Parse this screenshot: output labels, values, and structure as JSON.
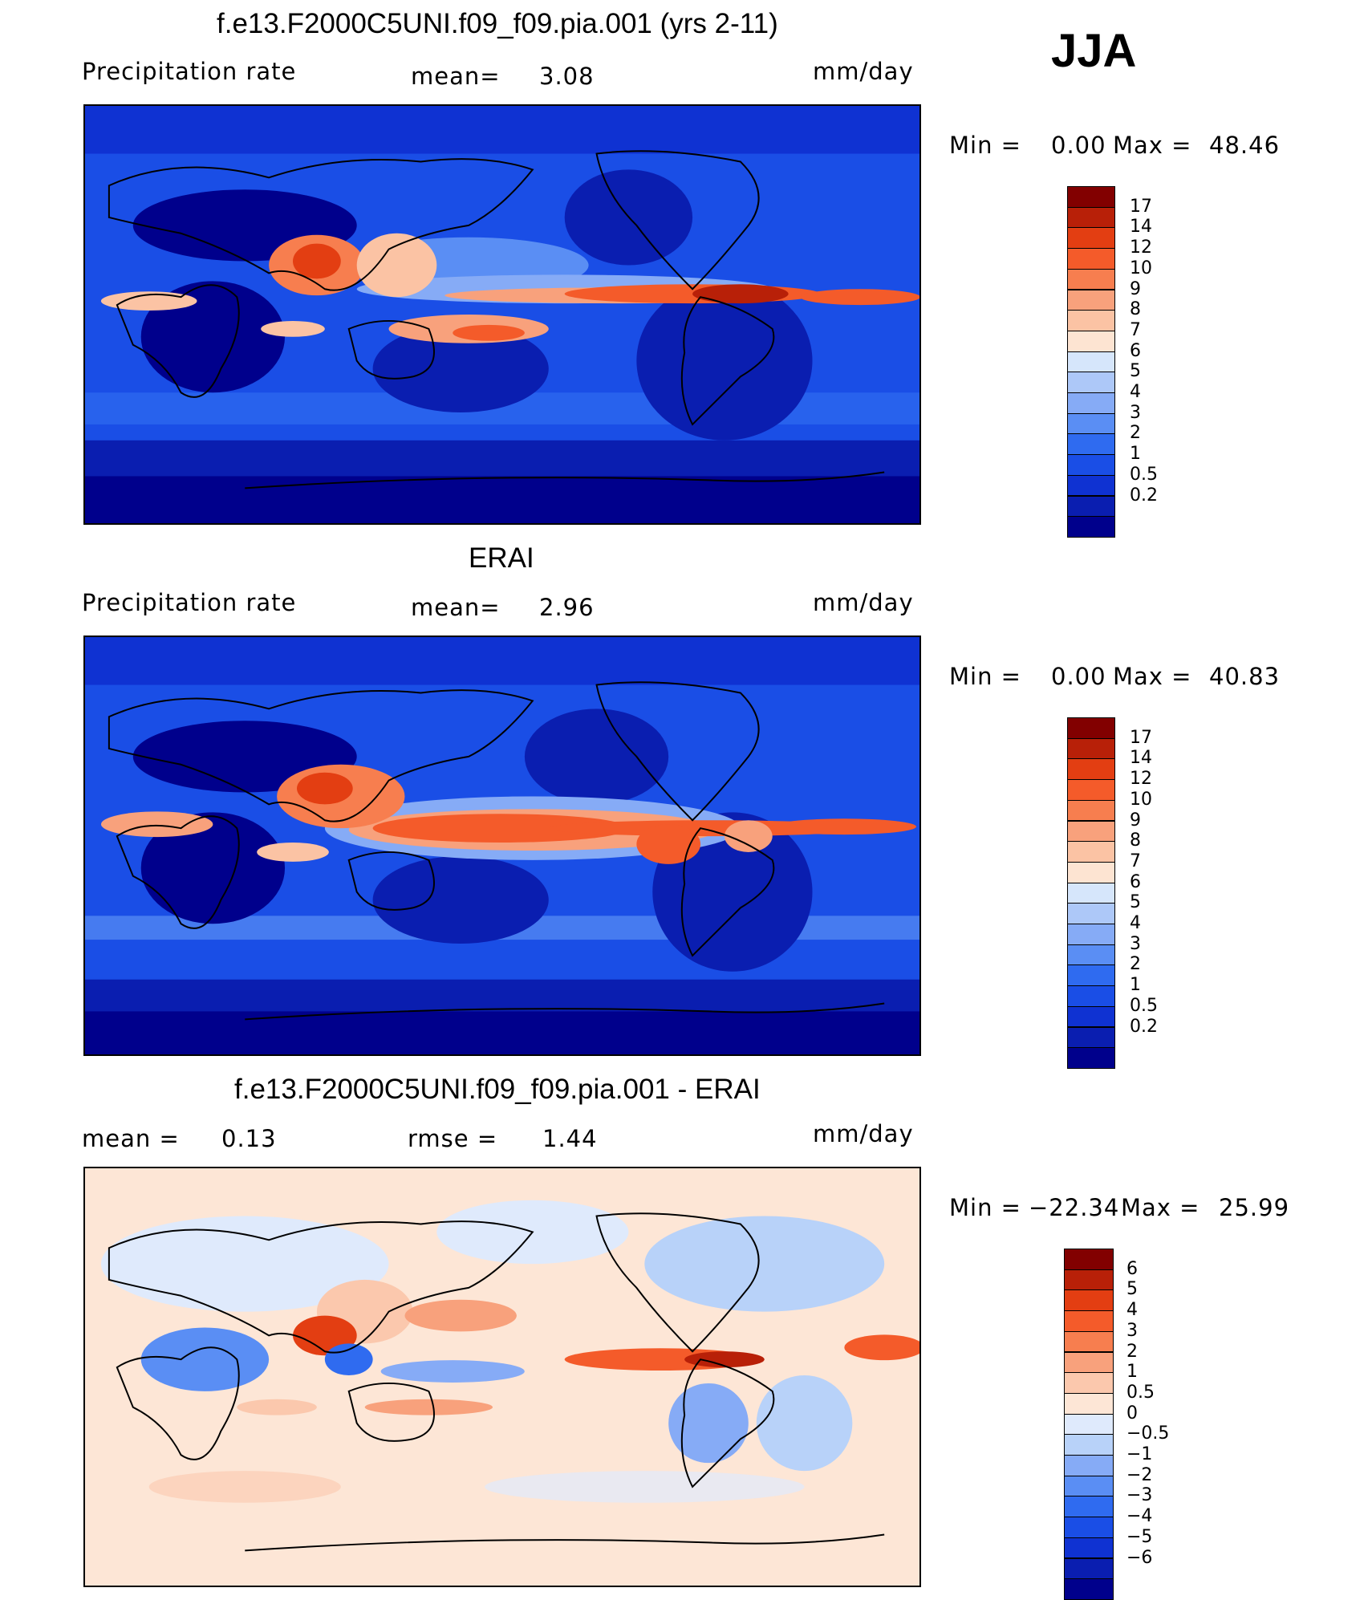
{
  "season": "JJA",
  "panels": [
    {
      "title": "f.e13.F2000C5UNI.f09_f09.pia.001 (yrs 2-11)",
      "left_label": "Precipitation  rate",
      "stat1_label": "mean=",
      "stat1_value": "3.08",
      "stat2_label": "",
      "stat2_value": "",
      "units": "mm/day",
      "min_label": "Min  =",
      "min_value": "0.00",
      "max_label": "Max  =",
      "max_value": "48.46"
    },
    {
      "title": "ERAI",
      "left_label": "Precipitation  rate",
      "stat1_label": "mean=",
      "stat1_value": "2.96",
      "stat2_label": "",
      "stat2_value": "",
      "units": "mm/day",
      "min_label": "Min  =",
      "min_value": "0.00",
      "max_label": "Max  =",
      "max_value": "40.83"
    },
    {
      "title": "f.e13.F2000C5UNI.f09_f09.pia.001 - ERAI",
      "left_label": "",
      "stat1_label": "mean  =",
      "stat1_value": "0.13",
      "stat2_label": "rmse  =",
      "stat2_value": "1.44",
      "units": "mm/day",
      "min_label": "Min  =",
      "min_value": "−22.34",
      "max_label": "Max  =",
      "max_value": "25.99"
    }
  ],
  "chart_data": [
    {
      "type": "heatmap",
      "title": "f.e13.F2000C5UNI.f09_f09.pia.001 (yrs 2-11)",
      "variable": "Precipitation rate",
      "units": "mm/day",
      "mean": 3.08,
      "min": 0.0,
      "max": 48.46,
      "colorbar": {
        "levels": [
          0.2,
          0.5,
          1,
          2,
          3,
          4,
          5,
          6,
          7,
          8,
          9,
          10,
          12,
          14,
          17
        ],
        "colors": [
          "#00008c",
          "#0a1eb0",
          "#0f32d2",
          "#1a4ee6",
          "#2f6bf0",
          "#5a8ef4",
          "#86abf6",
          "#adc8f8",
          "#d6e6fb",
          "#fde4d2",
          "#fbc3a4",
          "#f8a17c",
          "#f77e4f",
          "#f45b2a",
          "#e33e12",
          "#b82008",
          "#820000"
        ]
      }
    },
    {
      "type": "heatmap",
      "title": "ERAI",
      "variable": "Precipitation rate",
      "units": "mm/day",
      "mean": 2.96,
      "min": 0.0,
      "max": 40.83,
      "colorbar": {
        "levels": [
          0.2,
          0.5,
          1,
          2,
          3,
          4,
          5,
          6,
          7,
          8,
          9,
          10,
          12,
          14,
          17
        ],
        "colors": [
          "#00008c",
          "#0a1eb0",
          "#0f32d2",
          "#1a4ee6",
          "#2f6bf0",
          "#5a8ef4",
          "#86abf6",
          "#adc8f8",
          "#d6e6fb",
          "#fde4d2",
          "#fbc3a4",
          "#f8a17c",
          "#f77e4f",
          "#f45b2a",
          "#e33e12",
          "#b82008",
          "#820000"
        ]
      }
    },
    {
      "type": "heatmap",
      "title": "f.e13.F2000C5UNI.f09_f09.pia.001 - ERAI",
      "units": "mm/day",
      "mean": 0.13,
      "rmse": 1.44,
      "min": -22.34,
      "max": 25.99,
      "colorbar": {
        "levels": [
          -6,
          -5,
          -4,
          -3,
          -2,
          -1,
          -0.5,
          0,
          0.5,
          1,
          2,
          3,
          4,
          5,
          6
        ],
        "tick_labels": [
          "−6",
          "−5",
          "−4",
          "−3",
          "−2",
          "−1",
          "−0.5",
          "0",
          "0.5",
          "1",
          "2",
          "3",
          "4",
          "5",
          "6"
        ],
        "colors": [
          "#00008c",
          "#0a1eb0",
          "#0f32d2",
          "#1a4ee6",
          "#2f6bf0",
          "#5a8ef4",
          "#86abf6",
          "#b8d2f9",
          "#dfeafc",
          "#fde6d6",
          "#fbc8ad",
          "#f8a17c",
          "#f77e4f",
          "#f45b2a",
          "#e33e12",
          "#b82008",
          "#820000"
        ]
      }
    }
  ],
  "colors": {
    "ocean_dry": "#0a1eb0",
    "ocean_mid": "#2f6bf0",
    "wet": "#f45b2a",
    "very_wet": "#b82008",
    "diff_background": "#fde6d6"
  }
}
